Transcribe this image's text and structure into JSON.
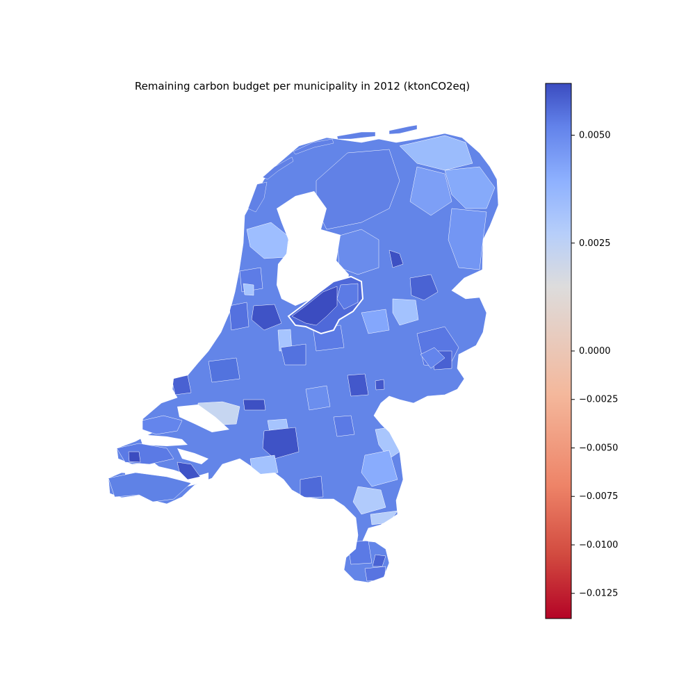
{
  "title": "Remaining carbon budget per municipality in 2012 (ktonCO2eq)",
  "colorbar": {
    "colormap": "coolwarm",
    "vmin": -0.0138,
    "vmax": 0.0062,
    "center": 0.0,
    "ticks": [
      {
        "value": 0.005,
        "label": "0.0050"
      },
      {
        "value": 0.0025,
        "label": "0.0025"
      },
      {
        "value": 0.0,
        "label": "0.0000"
      },
      {
        "value": -0.0025,
        "label": "−0.0025"
      },
      {
        "value": -0.005,
        "label": "−0.0050"
      },
      {
        "value": -0.0075,
        "label": "−0.0075"
      },
      {
        "value": -0.01,
        "label": "−0.0100"
      },
      {
        "value": -0.0125,
        "label": "−0.0125"
      }
    ]
  },
  "colors": {
    "dominant": "#5f82e6",
    "dark_blue": "#3b4cc0",
    "light_blue": "#a6c4fd",
    "pale": "#c5d5f2",
    "negative_red": "#e57a62"
  }
}
